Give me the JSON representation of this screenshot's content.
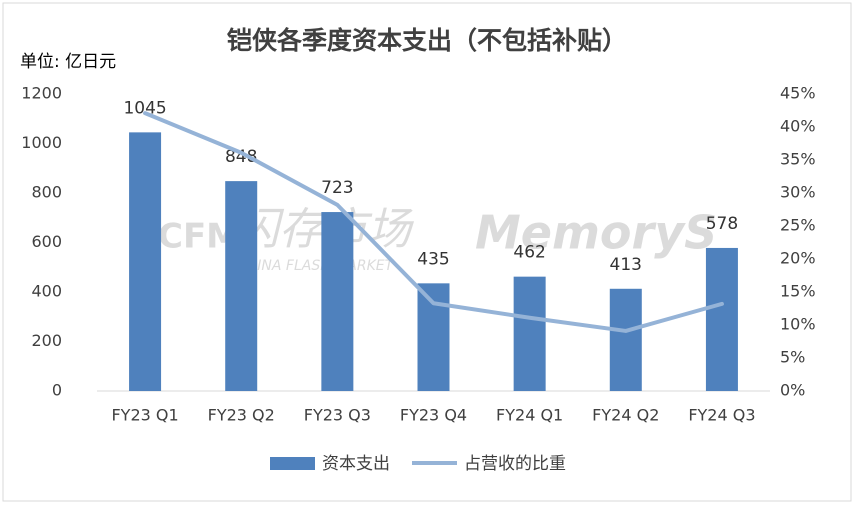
{
  "chart_data": {
    "type": "bar",
    "title": "铠侠各季度资本支出（不包括补贴）",
    "y_label": "单位: 亿日元",
    "watermark": [
      "CFM",
      "闪存市场",
      "CHINA FLASH MARKET",
      "MemoryS"
    ],
    "categories": [
      "FY23 Q1",
      "FY23 Q2",
      "FY23 Q3",
      "FY23 Q4",
      "FY24 Q1",
      "FY24 Q2",
      "FY24 Q3"
    ],
    "series": [
      {
        "name": "资本支出",
        "type": "bar",
        "color": "#4f81bd",
        "values": [
          1045,
          848,
          723,
          435,
          462,
          413,
          578
        ]
      },
      {
        "name": "占营收的比重",
        "type": "line",
        "axis": "y2",
        "color": "#95b3d7",
        "values": [
          42.1,
          36.1,
          28.2,
          13.3,
          11.1,
          9.1,
          13.2
        ]
      }
    ],
    "ylim": [
      0,
      1200
    ],
    "yticks": [
      0,
      200,
      400,
      600,
      800,
      1000,
      1200
    ],
    "y2lim": [
      0,
      45
    ],
    "y2ticks": [
      {
        "value": 0,
        "label": "0%"
      },
      {
        "value": 5,
        "label": "5%"
      },
      {
        "value": 10,
        "label": "10%"
      },
      {
        "value": 15,
        "label": "15%"
      },
      {
        "value": 20,
        "label": "20%"
      },
      {
        "value": 25,
        "label": "25%"
      },
      {
        "value": 30,
        "label": "30%"
      },
      {
        "value": 35,
        "label": "35%"
      },
      {
        "value": 40,
        "label": "40%"
      },
      {
        "value": 45,
        "label": "45%"
      }
    ],
    "grid": false,
    "legend": "bottom"
  }
}
